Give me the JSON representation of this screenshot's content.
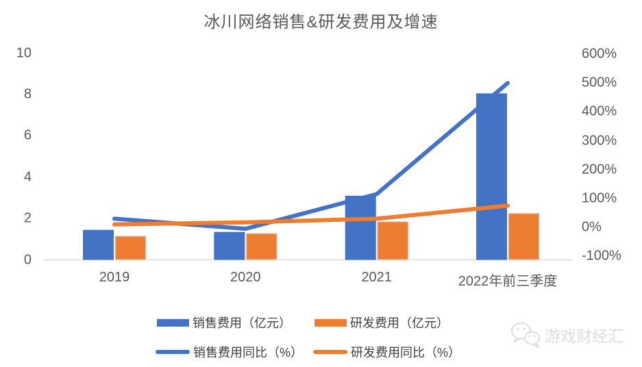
{
  "title": "冰川网络销售&研发费用及增速",
  "colors": {
    "blue": "#4472C4",
    "orange": "#ED7D31",
    "axis_text": "#595959",
    "legend_text": "#404040",
    "axis_line": "#D9D9D9",
    "bar_border": "#DBDBDB",
    "watermark_gray": "#DCDCDC"
  },
  "chart_data": {
    "type": "combo grouped-bar + line, dual y-axis",
    "categories": [
      "2019",
      "2020",
      "2021",
      "2022年前三季度"
    ],
    "series": [
      {
        "name": "销售费用（亿元）",
        "type": "bar",
        "axis": "left",
        "color": "#4472C4",
        "values": [
          1.45,
          1.35,
          3.1,
          8.05
        ]
      },
      {
        "name": "研发费用（亿元）",
        "type": "bar",
        "axis": "left",
        "color": "#ED7D31",
        "values": [
          1.15,
          1.28,
          1.85,
          2.25
        ]
      },
      {
        "name": "销售费用同比（%）",
        "type": "line",
        "axis": "right",
        "color": "#4472C4",
        "values": [
          30,
          -5,
          115,
          500
        ]
      },
      {
        "name": "研发费用同比（%）",
        "type": "line",
        "axis": "right",
        "color": "#ED7D31",
        "values": [
          10,
          17,
          30,
          75
        ]
      }
    ],
    "left_axis": {
      "ticks": [
        0,
        2,
        4,
        6,
        8,
        10
      ],
      "min": 0,
      "max": 10
    },
    "right_axis": {
      "ticks": [
        -100,
        0,
        100,
        200,
        300,
        400,
        500,
        600
      ],
      "min": -100,
      "max": 600,
      "format": "percent"
    },
    "grid": false,
    "legend_position": "bottom"
  },
  "watermark": {
    "text": "游戏财经汇",
    "icon": "wechat-icon"
  }
}
